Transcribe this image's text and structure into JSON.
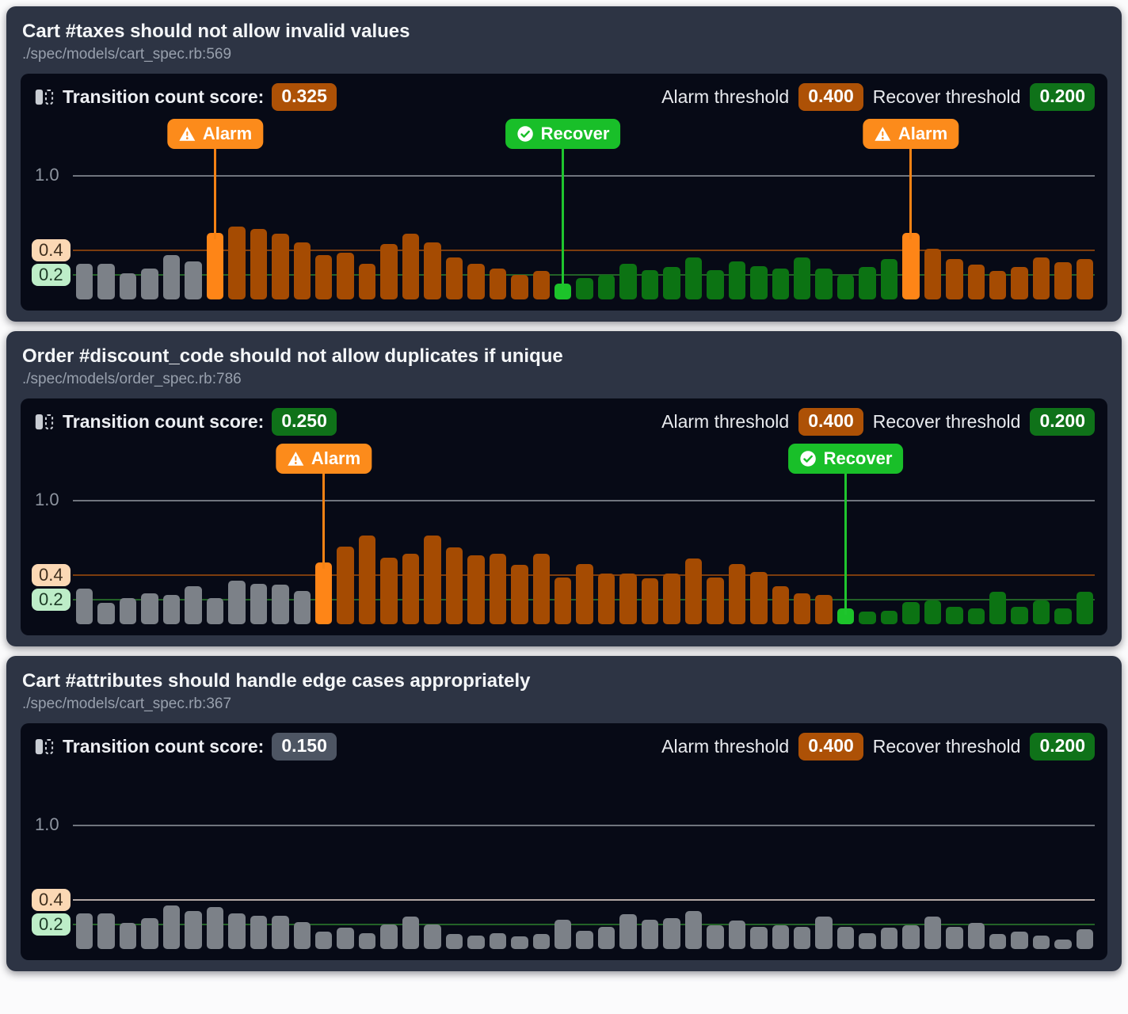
{
  "strings": {
    "score_label": "Transition count score:",
    "alarm_threshold_label": "Alarm threshold",
    "recover_threshold_label": "Recover threshold",
    "marker_labels": {
      "alarm": "Alarm",
      "recover": "Recover"
    }
  },
  "thresholds": {
    "alarm_value": "0.400",
    "recover_value": "0.200"
  },
  "axis": {
    "top_tick": "1.0",
    "alarm_tick": "0.4",
    "recover_tick": "0.2"
  },
  "colors": {
    "bars": {
      "g": "#7c8188",
      "A": "#fe8517",
      "o": "#a54b02",
      "R": "#1cc32a",
      "r": "#0c7313"
    },
    "bar_states": {
      "g": "baseline-gray",
      "A": "alarm-trigger-bright-orange",
      "o": "alarmed-dark-orange",
      "R": "recover-trigger-bright-green",
      "r": "recovered-dark-green"
    },
    "lines": {
      "top": "#70757e",
      "alarm": "#7c3c0e",
      "alarm_muted": "#b2a7a3",
      "recover": "#236227"
    },
    "marker": {
      "alarm_bg": "#fc8b1b",
      "alarm_line": "#f48214",
      "recover_bg": "#19bf29",
      "recover_line": "#1fc52e"
    },
    "badge": {
      "orange": "#ad5106",
      "green": "#0f7219",
      "gray": "#4d5563"
    },
    "pills": {
      "alarm_bg": "#fbd8b4",
      "alarm_text": "#3f2f1e",
      "recover_bg": "#bdedc8",
      "recover_text": "#1d3a26"
    }
  },
  "panels": [
    {
      "title": "Cart #taxes should not allow invalid values",
      "path": "./spec/models/cart_spec.rb:569",
      "score": "0.325",
      "score_style": "orange"
    },
    {
      "title": "Order #discount_code should not allow duplicates if unique",
      "path": "./spec/models/order_spec.rb:786",
      "score": "0.250",
      "score_style": "green"
    },
    {
      "title": "Cart #attributes should handle edge cases appropriately",
      "path": "./spec/models/cart_spec.rb:367",
      "score": "0.150",
      "score_style": "gray"
    }
  ],
  "chart_data": [
    {
      "type": "bar",
      "title": "Cart #taxes transition history",
      "ylim": [
        0,
        1.15
      ],
      "yticks": [
        1.0,
        0.4,
        0.2
      ],
      "alarm_threshold": 0.4,
      "recover_threshold": 0.2,
      "alarm_line": "strong",
      "grid": "horizontal-threshold-lines",
      "bars": [
        [
          0.29,
          "g"
        ],
        [
          0.29,
          "g"
        ],
        [
          0.21,
          "g"
        ],
        [
          0.25,
          "g"
        ],
        [
          0.36,
          "g"
        ],
        [
          0.31,
          "g"
        ],
        [
          0.54,
          "A"
        ],
        [
          0.59,
          "o"
        ],
        [
          0.57,
          "o"
        ],
        [
          0.53,
          "o"
        ],
        [
          0.46,
          "o"
        ],
        [
          0.36,
          "o"
        ],
        [
          0.38,
          "o"
        ],
        [
          0.29,
          "o"
        ],
        [
          0.45,
          "o"
        ],
        [
          0.53,
          "o"
        ],
        [
          0.46,
          "o"
        ],
        [
          0.34,
          "o"
        ],
        [
          0.29,
          "o"
        ],
        [
          0.25,
          "o"
        ],
        [
          0.2,
          "o"
        ],
        [
          0.23,
          "o"
        ],
        [
          0.13,
          "R"
        ],
        [
          0.17,
          "r"
        ],
        [
          0.2,
          "r"
        ],
        [
          0.29,
          "r"
        ],
        [
          0.24,
          "r"
        ],
        [
          0.26,
          "r"
        ],
        [
          0.34,
          "r"
        ],
        [
          0.24,
          "r"
        ],
        [
          0.31,
          "r"
        ],
        [
          0.27,
          "r"
        ],
        [
          0.25,
          "r"
        ],
        [
          0.34,
          "r"
        ],
        [
          0.25,
          "r"
        ],
        [
          0.2,
          "r"
        ],
        [
          0.26,
          "r"
        ],
        [
          0.33,
          "r"
        ],
        [
          0.54,
          "A"
        ],
        [
          0.41,
          "o"
        ],
        [
          0.33,
          "o"
        ],
        [
          0.28,
          "o"
        ],
        [
          0.23,
          "o"
        ],
        [
          0.26,
          "o"
        ],
        [
          0.34,
          "o"
        ],
        [
          0.3,
          "o"
        ],
        [
          0.33,
          "o"
        ]
      ],
      "markers": [
        {
          "type": "alarm",
          "bar": 6
        },
        {
          "type": "recover",
          "bar": 22
        },
        {
          "type": "alarm",
          "bar": 38
        }
      ]
    },
    {
      "type": "bar",
      "title": "Order #discount_code transition history",
      "ylim": [
        0,
        1.15
      ],
      "yticks": [
        1.0,
        0.4,
        0.2
      ],
      "alarm_threshold": 0.4,
      "recover_threshold": 0.2,
      "alarm_line": "strong",
      "grid": "horizontal-threshold-lines",
      "bars": [
        [
          0.29,
          "g"
        ],
        [
          0.17,
          "g"
        ],
        [
          0.21,
          "g"
        ],
        [
          0.25,
          "g"
        ],
        [
          0.24,
          "g"
        ],
        [
          0.31,
          "g"
        ],
        [
          0.21,
          "g"
        ],
        [
          0.35,
          "g"
        ],
        [
          0.33,
          "g"
        ],
        [
          0.32,
          "g"
        ],
        [
          0.27,
          "g"
        ],
        [
          0.5,
          "A"
        ],
        [
          0.63,
          "o"
        ],
        [
          0.72,
          "o"
        ],
        [
          0.54,
          "o"
        ],
        [
          0.57,
          "o"
        ],
        [
          0.72,
          "o"
        ],
        [
          0.62,
          "o"
        ],
        [
          0.56,
          "o"
        ],
        [
          0.57,
          "o"
        ],
        [
          0.48,
          "o"
        ],
        [
          0.57,
          "o"
        ],
        [
          0.38,
          "o"
        ],
        [
          0.49,
          "o"
        ],
        [
          0.41,
          "o"
        ],
        [
          0.41,
          "o"
        ],
        [
          0.37,
          "o"
        ],
        [
          0.41,
          "o"
        ],
        [
          0.53,
          "o"
        ],
        [
          0.38,
          "o"
        ],
        [
          0.49,
          "o"
        ],
        [
          0.42,
          "o"
        ],
        [
          0.31,
          "o"
        ],
        [
          0.25,
          "o"
        ],
        [
          0.24,
          "o"
        ],
        [
          0.13,
          "R"
        ],
        [
          0.1,
          "r"
        ],
        [
          0.11,
          "r"
        ],
        [
          0.18,
          "r"
        ],
        [
          0.19,
          "r"
        ],
        [
          0.14,
          "r"
        ],
        [
          0.13,
          "r"
        ],
        [
          0.26,
          "r"
        ],
        [
          0.14,
          "r"
        ],
        [
          0.19,
          "r"
        ],
        [
          0.13,
          "r"
        ],
        [
          0.26,
          "r"
        ]
      ],
      "markers": [
        {
          "type": "alarm",
          "bar": 11
        },
        {
          "type": "recover",
          "bar": 35
        }
      ]
    },
    {
      "type": "bar",
      "title": "Cart #attributes transition history",
      "ylim": [
        0,
        1.15
      ],
      "yticks": [
        1.0,
        0.4,
        0.2
      ],
      "alarm_threshold": 0.4,
      "recover_threshold": 0.2,
      "alarm_line": "muted",
      "grid": "horizontal-threshold-lines",
      "bars": [
        [
          0.29,
          "g"
        ],
        [
          0.29,
          "g"
        ],
        [
          0.21,
          "g"
        ],
        [
          0.25,
          "g"
        ],
        [
          0.35,
          "g"
        ],
        [
          0.31,
          "g"
        ],
        [
          0.34,
          "g"
        ],
        [
          0.29,
          "g"
        ],
        [
          0.27,
          "g"
        ],
        [
          0.27,
          "g"
        ],
        [
          0.22,
          "g"
        ],
        [
          0.14,
          "g"
        ],
        [
          0.17,
          "g"
        ],
        [
          0.13,
          "g"
        ],
        [
          0.2,
          "g"
        ],
        [
          0.26,
          "g"
        ],
        [
          0.2,
          "g"
        ],
        [
          0.12,
          "g"
        ],
        [
          0.11,
          "g"
        ],
        [
          0.13,
          "g"
        ],
        [
          0.1,
          "g"
        ],
        [
          0.12,
          "g"
        ],
        [
          0.24,
          "g"
        ],
        [
          0.15,
          "g"
        ],
        [
          0.18,
          "g"
        ],
        [
          0.28,
          "g"
        ],
        [
          0.24,
          "g"
        ],
        [
          0.25,
          "g"
        ],
        [
          0.31,
          "g"
        ],
        [
          0.19,
          "g"
        ],
        [
          0.23,
          "g"
        ],
        [
          0.18,
          "g"
        ],
        [
          0.19,
          "g"
        ],
        [
          0.18,
          "g"
        ],
        [
          0.26,
          "g"
        ],
        [
          0.18,
          "g"
        ],
        [
          0.13,
          "g"
        ],
        [
          0.17,
          "g"
        ],
        [
          0.19,
          "g"
        ],
        [
          0.26,
          "g"
        ],
        [
          0.18,
          "g"
        ],
        [
          0.21,
          "g"
        ],
        [
          0.12,
          "g"
        ],
        [
          0.14,
          "g"
        ],
        [
          0.11,
          "g"
        ],
        [
          0.08,
          "g"
        ],
        [
          0.16,
          "g"
        ]
      ],
      "markers": []
    }
  ]
}
